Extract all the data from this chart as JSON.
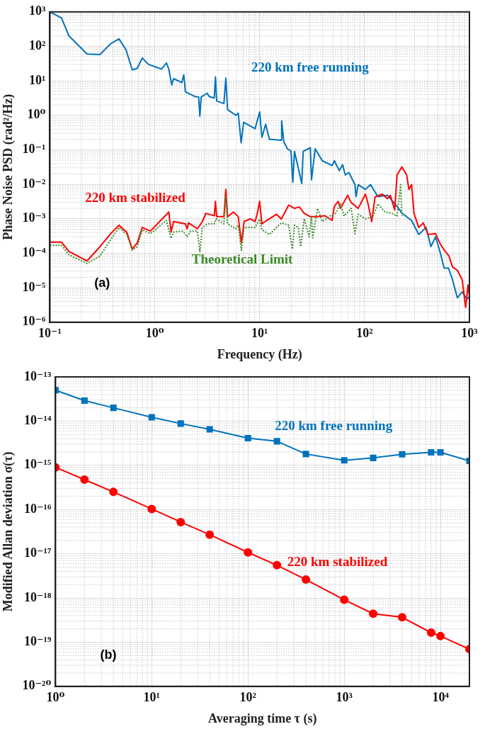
{
  "chart_data": [
    {
      "type": "line",
      "xlabel": "Frequency (Hz)",
      "ylabel": "Phase Noise PSD (rad²/Hz)",
      "log": "xy",
      "grid": true,
      "legend": false,
      "marker": "none",
      "annotations": [
        "(a)"
      ],
      "xlim": [
        0.1,
        1000
      ],
      "ylim": [
        1e-06,
        1000
      ],
      "xticks": [
        {
          "value": 0.1,
          "label": "10⁻¹"
        },
        {
          "value": 1,
          "label": "10⁰"
        },
        {
          "value": 10,
          "label": "10¹"
        },
        {
          "value": 100,
          "label": "10²"
        },
        {
          "value": 1000,
          "label": "10³"
        }
      ],
      "yticks": [
        {
          "value": 1e-06,
          "label": "10⁻⁶"
        },
        {
          "value": 1e-05,
          "label": "10⁻⁵"
        },
        {
          "value": 0.0001,
          "label": "10⁻⁴"
        },
        {
          "value": 0.001,
          "label": "10⁻³"
        },
        {
          "value": 0.01,
          "label": "10⁻²"
        },
        {
          "value": 0.1,
          "label": "10⁻¹"
        },
        {
          "value": 1,
          "label": "10⁰"
        },
        {
          "value": 10,
          "label": "10¹"
        },
        {
          "value": 100,
          "label": "10²"
        },
        {
          "value": 1000,
          "label": "10³"
        }
      ],
      "series": [
        {
          "name": "220 km free running",
          "color": "#0072bd",
          "line_style": "solid",
          "x": [
            0.1,
            0.129,
            0.152,
            0.226,
            0.3,
            0.38,
            0.456,
            0.53,
            0.61,
            0.68,
            0.76,
            0.87,
            1.16,
            1.29,
            1.36,
            1.45,
            1.51,
            1.81,
            1.89,
            1.96,
            2.42,
            2.62,
            2.69,
            2.77,
            3.16,
            3.3,
            3.69,
            3.79,
            3.89,
            4.56,
            4.76,
            4.94,
            5.93,
            6.25,
            6.66,
            7.03,
            9.04,
            10,
            10.5,
            11.4,
            12.4,
            13,
            16.1,
            16.2,
            17,
            18.4,
            19.9,
            20.7,
            21.5,
            25.2,
            26,
            30.4,
            31.2,
            33.8,
            39.6,
            49,
            51.6,
            57.4,
            61.8,
            65.5,
            70.8,
            81,
            83,
            87,
            102,
            114,
            134,
            165,
            204,
            227,
            281,
            329,
            386,
            429,
            476,
            530,
            574,
            632,
            690,
            767,
            853,
            948,
            1000
          ],
          "values": [
            1000,
            670,
            200,
            60,
            58,
            120,
            165,
            81,
            21,
            23,
            46,
            30,
            22,
            33,
            22,
            7.6,
            11.6,
            8.9,
            15,
            4.8,
            3.5,
            3.4,
            0.95,
            3.4,
            4.4,
            3.5,
            3.2,
            13,
            2.6,
            2.2,
            12,
            1.47,
            1.0,
            1.16,
            0.16,
            0.63,
            0.41,
            1.26,
            0.23,
            0.55,
            0.2,
            0.2,
            0.19,
            0.69,
            0.17,
            0.107,
            0.091,
            0.0115,
            0.09,
            0.0105,
            0.09,
            0.115,
            0.0135,
            0.107,
            0.048,
            0.035,
            0.048,
            0.025,
            0.037,
            0.0186,
            0.022,
            0.0098,
            0.0044,
            0.0098,
            0.0071,
            0.0098,
            0.0044,
            0.0048,
            0.0023,
            0.00146,
            0.00089,
            0.00035,
            0.00056,
            0.000156,
            0.0003,
            9.77e-05,
            3.7e-05,
            3.7e-05,
            1.7e-05,
            5.1e-06,
            7.6e-06,
            4.7e-06,
            5.5e-06
          ]
        },
        {
          "name": "220 km stabilized",
          "color": "#ff0000",
          "line_style": "solid",
          "x": [
            0.1,
            0.129,
            0.152,
            0.226,
            0.3,
            0.38,
            0.456,
            0.54,
            0.61,
            0.68,
            0.76,
            0.91,
            1.36,
            1.43,
            1.51,
            1.96,
            2.03,
            2.1,
            2.55,
            2.84,
            3.07,
            3.69,
            3.79,
            3.89,
            4.56,
            4.76,
            4.94,
            5.63,
            6.25,
            6.69,
            7.1,
            8.1,
            9.04,
            9.5,
            10,
            10.5,
            11.7,
            14.5,
            16.1,
            18.9,
            21.5,
            23.9,
            26.6,
            30.4,
            35.6,
            41.7,
            49,
            51.6,
            56,
            59,
            69,
            74.5,
            87,
            102,
            108,
            117,
            126,
            148,
            165,
            176,
            194,
            204,
            227,
            252,
            265,
            281,
            296,
            329,
            363,
            403,
            476,
            530,
            588,
            638,
            690,
            767,
            853,
            920,
            970,
            1000
          ],
          "values": [
            0.00021,
            0.00021,
            0.000113,
            6e-05,
            0.000155,
            0.00037,
            0.00065,
            0.00041,
            0.000133,
            0.0002,
            0.00056,
            0.00044,
            0.00157,
            0.00041,
            0.00083,
            0.00071,
            0.00051,
            0.00076,
            0.00051,
            0.00083,
            0.00144,
            0.00123,
            0.0032,
            0.00115,
            0.00115,
            0.0071,
            0.00115,
            0.00157,
            0.00115,
            0.0002,
            0.00083,
            0.001,
            0.00083,
            0.00144,
            0.0032,
            0.00071,
            0.0009,
            0.00135,
            0.00098,
            0.0025,
            0.002,
            0.0022,
            0.00144,
            0.00115,
            0.00115,
            0.00123,
            0.0009,
            0.0023,
            0.0032,
            0.002,
            0.0048,
            0.00296,
            0.002,
            0.0052,
            0.0027,
            0.00083,
            0.0043,
            0.0052,
            0.0038,
            0.0048,
            0.0018,
            0.0186,
            0.032,
            0.0186,
            0.0071,
            0.0098,
            0.00144,
            0.00056,
            0.00076,
            0.00035,
            0.00037,
            0.00018,
            0.000113,
            8.3e-05,
            4e-05,
            3.2e-05,
            1.7e-05,
            2.7e-06,
            1.2e-05,
            5.5e-06
          ]
        },
        {
          "name": "Theoretical Limit",
          "color": "#3c8c28",
          "line_style": "dotted",
          "x": [
            0.1,
            0.129,
            0.152,
            0.226,
            0.3,
            0.38,
            0.456,
            0.54,
            0.61,
            0.68,
            0.76,
            0.91,
            1.29,
            1.43,
            1.51,
            1.86,
            2.03,
            2.2,
            2.55,
            2.69,
            2.84,
            3.16,
            3.69,
            3.85,
            4.56,
            4.76,
            4.94,
            5.93,
            6.25,
            6.69,
            7.1,
            9.04,
            10,
            10.5,
            12.4,
            14.5,
            16.1,
            18.9,
            20.5,
            21.5,
            23.4,
            24.6,
            26.6,
            29.6,
            31.2,
            32,
            35.6,
            39.6,
            46.5,
            53,
            59,
            63.8,
            74.5,
            81,
            87,
            102,
            120,
            134,
            157,
            183,
            204,
            221,
            227
          ],
          "values": [
            0.00017,
            0.00017,
            9e-05,
            5.1e-05,
            8.3e-05,
            0.00025,
            0.00056,
            0.00035,
            0.000123,
            0.000156,
            0.00048,
            0.00037,
            0.0009,
            0.00027,
            0.00041,
            0.00044,
            0.0003,
            0.00044,
            0.00044,
            0.000113,
            0.00056,
            0.00071,
            0.00071,
            0.001,
            0.00071,
            0.0044,
            0.00071,
            0.00051,
            0.00065,
            0.000123,
            0.00056,
            0.00056,
            0.00098,
            0.00048,
            0.00035,
            0.00056,
            0.00076,
            0.00065,
            0.000133,
            0.00065,
            0.00056,
            0.000155,
            0.001,
            0.0003,
            0.0012,
            0.00028,
            0.002,
            0.00083,
            0.0012,
            0.00144,
            0.0027,
            0.0012,
            0.002,
            0.00037,
            0.00135,
            0.001,
            0.00115,
            0.0027,
            0.00157,
            0.00144,
            0.0012,
            0.0098,
            0.0012
          ]
        }
      ]
    },
    {
      "type": "line",
      "xlabel": "Averaging time τ (s)",
      "ylabel": "Modified Allan deviation σ(τ)",
      "log": "xy",
      "grid": true,
      "legend": false,
      "annotations": [
        "(b)"
      ],
      "xlim": [
        1,
        20000
      ],
      "ylim": [
        1e-20,
        1e-13
      ],
      "xticks": [
        {
          "value": 1,
          "label": "10⁰"
        },
        {
          "value": 10,
          "label": "10¹"
        },
        {
          "value": 100,
          "label": "10²"
        },
        {
          "value": 1000,
          "label": "10³"
        },
        {
          "value": 10000,
          "label": "10⁴"
        }
      ],
      "yticks": [
        {
          "value": 1e-20,
          "label": "10⁻²⁰"
        },
        {
          "value": 1e-19,
          "label": "10⁻¹⁹"
        },
        {
          "value": 1e-18,
          "label": "10⁻¹⁸"
        },
        {
          "value": 1e-17,
          "label": "10⁻¹⁷"
        },
        {
          "value": 1e-16,
          "label": "10⁻¹⁶"
        },
        {
          "value": 1e-15,
          "label": "10⁻¹⁵"
        },
        {
          "value": 1e-14,
          "label": "10⁻¹⁴"
        },
        {
          "value": 1e-13,
          "label": "10⁻¹³"
        }
      ],
      "x": [
        1,
        2,
        4,
        10,
        20,
        40,
        100,
        200,
        400,
        1000,
        2000,
        4000,
        8000,
        10000,
        20000
      ],
      "series": [
        {
          "name": "220 km free running",
          "color": "#0072bd",
          "marker": "square",
          "values": [
            5e-14,
            2.9e-14,
            2e-14,
            1.22e-14,
            8.8e-15,
            6.5e-15,
            4.1e-15,
            3.5e-15,
            1.8e-15,
            1.3e-15,
            1.47e-15,
            1.78e-15,
            1.97e-15,
            1.97e-15,
            1.26e-15
          ]
        },
        {
          "name": "220 km stabilized",
          "color": "#ff0000",
          "marker": "circle",
          "values": [
            9e-16,
            4.75e-16,
            2.5e-16,
            1.03e-16,
            5.2e-17,
            2.7e-17,
            1.07e-17,
            5.5e-18,
            2.6e-18,
            9.1e-19,
            4.4e-19,
            3.65e-19,
            1.64e-19,
            1.37e-19,
            6.95e-20
          ]
        }
      ]
    }
  ]
}
